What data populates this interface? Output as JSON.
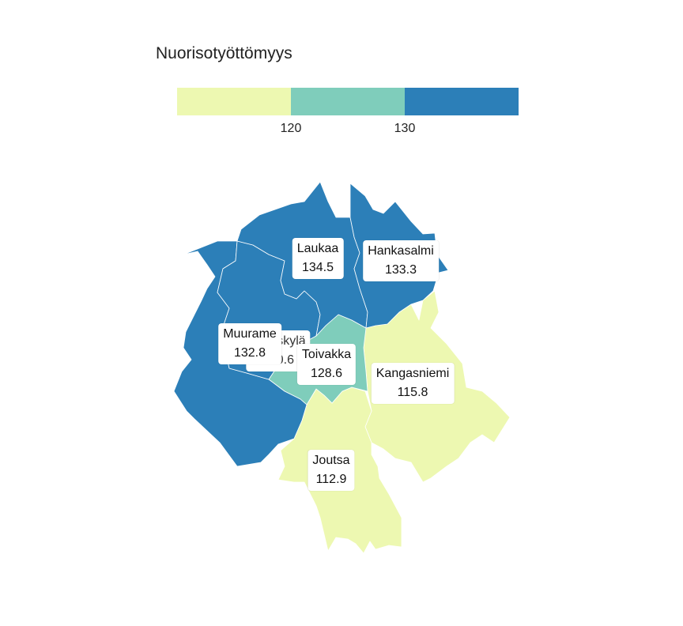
{
  "legend": {
    "title": "Nuorisotyöttömyys",
    "ticks": [
      "120",
      "130"
    ],
    "colors": [
      "#edf8b1",
      "#7fcdbb",
      "#2c7fb8"
    ]
  },
  "regions": [
    {
      "name": "Laukaa",
      "value": "134.5",
      "color": "#2c7fb8"
    },
    {
      "name": "Hankasalmi",
      "value": "133.3",
      "color": "#2c7fb8"
    },
    {
      "name": "Muurame",
      "value": "132.8",
      "color": "#2c7fb8"
    },
    {
      "name": "Jyväskylä",
      "value": "130.6",
      "color": "#2c7fb8"
    },
    {
      "name": "Toivakka",
      "value": "128.6",
      "color": "#7fcdbb"
    },
    {
      "name": "Kangasniemi",
      "value": "115.8",
      "color": "#edf8b1"
    },
    {
      "name": "Joutsa",
      "value": "112.9",
      "color": "#edf8b1"
    }
  ]
}
